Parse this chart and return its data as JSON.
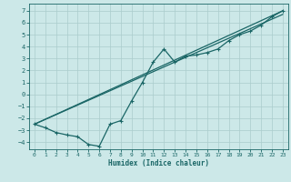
{
  "xlabel": "Humidex (Indice chaleur)",
  "bg_color": "#cce8e8",
  "grid_color": "#aacccc",
  "line_color": "#1a6666",
  "xlim": [
    -0.5,
    23.5
  ],
  "ylim": [
    -4.6,
    7.6
  ],
  "xticks": [
    0,
    1,
    2,
    3,
    4,
    5,
    6,
    7,
    8,
    9,
    10,
    11,
    12,
    13,
    14,
    15,
    16,
    17,
    18,
    19,
    20,
    21,
    22,
    23
  ],
  "yticks": [
    -4,
    -3,
    -2,
    -1,
    0,
    1,
    2,
    3,
    4,
    5,
    6,
    7
  ],
  "curve1_x": [
    0,
    1,
    2,
    3,
    4,
    5,
    6,
    7,
    8,
    9,
    10,
    11,
    12,
    13,
    14,
    15,
    16,
    17,
    18,
    19,
    20,
    21,
    22,
    23
  ],
  "curve1_y": [
    -2.5,
    -2.8,
    -3.2,
    -3.4,
    -3.55,
    -4.2,
    -4.35,
    -2.5,
    -2.2,
    -0.55,
    1.0,
    2.7,
    3.8,
    2.7,
    3.2,
    3.3,
    3.5,
    3.8,
    4.5,
    5.0,
    5.3,
    5.8,
    6.5,
    7.0
  ],
  "line2_x": [
    0,
    23
  ],
  "line2_y": [
    -2.5,
    7.0
  ],
  "line3_x": [
    0,
    23
  ],
  "line3_y": [
    -2.5,
    6.7
  ]
}
